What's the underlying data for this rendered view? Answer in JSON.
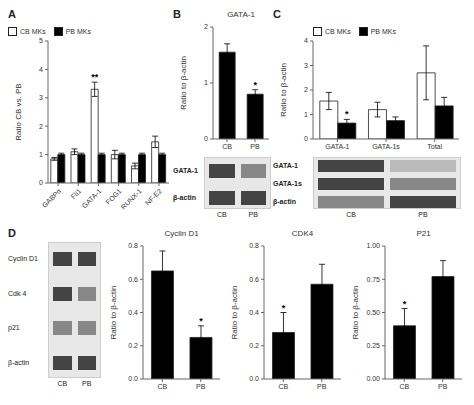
{
  "chart_data": [
    {
      "type": "bar",
      "annotations": [
        {
          "text": "A"
        },
        {
          "text": "**",
          "category": "GATA-1",
          "series": "CB MKs"
        }
      ],
      "ylabel": "Ratio CB vs. PB",
      "categories": [
        "GABPα",
        "Fli1",
        "GATA-1",
        "FOG1",
        "RUNX-1",
        "NF-E2"
      ],
      "series": [
        {
          "name": "CB MKs",
          "color": "#ffffff",
          "values": [
            0.85,
            1.1,
            3.3,
            1.0,
            0.6,
            1.45
          ],
          "errors": [
            0.05,
            0.1,
            0.25,
            0.15,
            0.1,
            0.2
          ]
        },
        {
          "name": "PB MKs",
          "color": "#000000",
          "values": [
            1.0,
            1.0,
            1.0,
            1.0,
            1.0,
            1.0
          ],
          "errors": [
            0.05,
            0.05,
            0.05,
            0.05,
            0.05,
            0.05
          ]
        }
      ],
      "ylim": [
        0,
        5
      ],
      "yticks": [
        0,
        1,
        2,
        3,
        4,
        5
      ],
      "legend": "upper right"
    },
    {
      "type": "bar",
      "title": "GATA-1",
      "annotations": [
        {
          "text": "B"
        },
        {
          "text": "*",
          "category": "PB"
        }
      ],
      "ylabel": "Ratio to β-actin",
      "categories": [
        "CB",
        "PB"
      ],
      "values": [
        1.55,
        0.8
      ],
      "errors": [
        0.15,
        0.08
      ],
      "color": "#000000",
      "ylim": [
        0,
        2
      ],
      "yticks": [
        0,
        1,
        2
      ]
    },
    {
      "type": "blot",
      "categories": [
        "CB",
        "PB"
      ],
      "series": [
        {
          "name": "GATA-1",
          "colors": [
            "#444444",
            "#888888"
          ]
        },
        {
          "name": "β-actin",
          "colors": [
            "#444444",
            "#444444"
          ]
        }
      ]
    },
    {
      "type": "bar",
      "annotations": [
        {
          "text": "C"
        },
        {
          "text": "*",
          "category": "GATA-1",
          "series": "PB MKs"
        }
      ],
      "ylabel": "Ratio to β-actin",
      "categories": [
        "GATA-1",
        "GATA-1s",
        "Total"
      ],
      "series": [
        {
          "name": "CB MKs",
          "color": "#ffffff",
          "values": [
            1.55,
            1.2,
            2.7
          ],
          "errors": [
            0.35,
            0.3,
            1.1
          ]
        },
        {
          "name": "PB MKs",
          "color": "#000000",
          "values": [
            0.65,
            0.75,
            1.35
          ],
          "errors": [
            0.15,
            0.15,
            0.35
          ]
        }
      ],
      "ylim": [
        0,
        4
      ],
      "yticks": [
        0,
        1,
        2,
        3,
        4
      ],
      "legend": "upper left"
    },
    {
      "type": "blot",
      "categories": [
        "CB",
        "PB"
      ],
      "series": [
        {
          "name": "GATA-1",
          "colors": [
            "#444444",
            "#bbbbbb"
          ]
        },
        {
          "name": "GATA-1s",
          "colors": [
            "#444444",
            "#888888"
          ]
        },
        {
          "name": "β-actin",
          "colors": [
            "#888888",
            "#444444"
          ]
        }
      ]
    },
    {
      "type": "blot",
      "annotations": [
        {
          "text": "D"
        }
      ],
      "categories": [
        "CB",
        "PB"
      ],
      "series": [
        {
          "name": "Cyclin D1",
          "colors": [
            "#444444",
            "#444444"
          ]
        },
        {
          "name": "Cdk 4",
          "colors": [
            "#444444",
            "#888888"
          ]
        },
        {
          "name": "p21",
          "colors": [
            "#888888",
            "#888888"
          ]
        },
        {
          "name": "β-actin",
          "colors": [
            "#444444",
            "#444444"
          ]
        }
      ]
    },
    {
      "type": "bar",
      "title": "Cyclin D1",
      "annotations": [
        {
          "text": "*",
          "category": "PB"
        }
      ],
      "ylabel": "Ratio to β-actin",
      "categories": [
        "CB",
        "PB"
      ],
      "values": [
        0.65,
        0.25
      ],
      "errors": [
        0.12,
        0.07
      ],
      "color": "#000000",
      "ylim": [
        0,
        0.8
      ],
      "yticks": [
        {
          "value": 0.0,
          "label": "0.0"
        },
        0.2,
        0.4,
        0.6,
        0.8
      ]
    },
    {
      "type": "bar",
      "title": "CDK4",
      "annotations": [
        {
          "text": "*",
          "category": "CB"
        }
      ],
      "ylabel": "Ratio to β-actin",
      "categories": [
        "CB",
        "PB"
      ],
      "values": [
        0.28,
        0.57
      ],
      "errors": [
        0.12,
        0.12
      ],
      "color": "#000000",
      "ylim": [
        0,
        0.8
      ],
      "yticks": [
        {
          "value": 0.0,
          "label": "0.0"
        },
        0.2,
        0.4,
        0.6,
        0.8
      ]
    },
    {
      "type": "bar",
      "title": "P21",
      "annotations": [
        {
          "text": "*",
          "category": "CB"
        }
      ],
      "ylabel": "Ratio to β-actin",
      "categories": [
        "CB",
        "PB"
      ],
      "values": [
        0.4,
        0.77
      ],
      "errors": [
        0.13,
        0.12
      ],
      "color": "#000000",
      "ylim": [
        0,
        1.0
      ],
      "yticks": [
        {
          "value": 0.0,
          "label": "0.00"
        },
        0.25,
        {
          "value": 0.5,
          "label": "0.50"
        },
        0.75,
        {
          "value": 1.0,
          "label": "1.00"
        }
      ]
    }
  ]
}
